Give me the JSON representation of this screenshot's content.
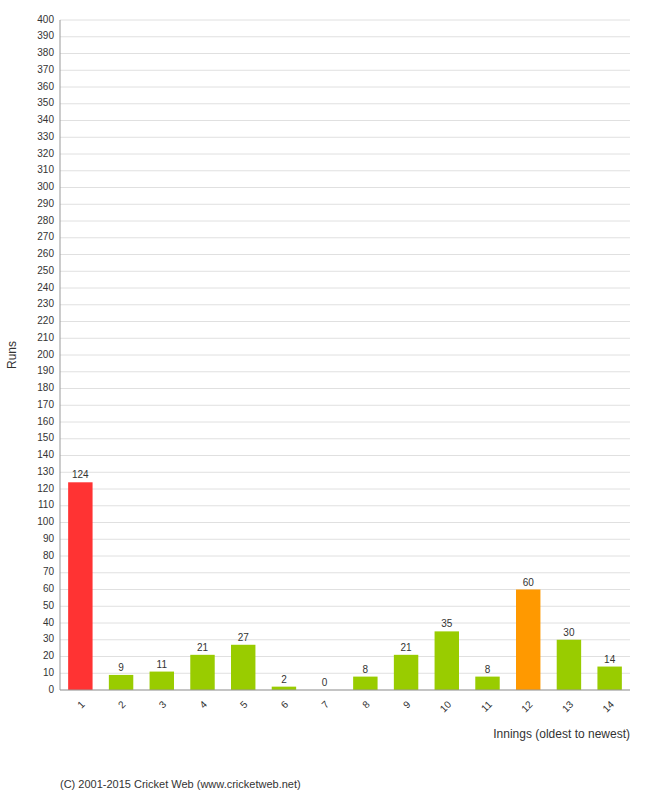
{
  "chart_data": {
    "type": "bar",
    "xlabel": "Innings (oldest to newest)",
    "ylabel": "Runs",
    "categories": [
      "1",
      "2",
      "3",
      "4",
      "5",
      "6",
      "7",
      "8",
      "9",
      "10",
      "11",
      "12",
      "13",
      "14"
    ],
    "values": [
      124,
      9,
      11,
      21,
      27,
      2,
      0,
      8,
      21,
      35,
      8,
      60,
      30,
      14
    ],
    "colors": [
      "#ff3333",
      "#99cc00",
      "#99cc00",
      "#99cc00",
      "#99cc00",
      "#99cc00",
      "#99cc00",
      "#99cc00",
      "#99cc00",
      "#99cc00",
      "#99cc00",
      "#ff9900",
      "#99cc00",
      "#99cc00"
    ],
    "ylim": [
      0,
      400
    ],
    "yticks": [
      0,
      10,
      20,
      30,
      40,
      50,
      60,
      70,
      80,
      90,
      100,
      110,
      120,
      130,
      140,
      150,
      160,
      170,
      180,
      190,
      200,
      210,
      220,
      230,
      240,
      250,
      260,
      270,
      280,
      290,
      300,
      310,
      320,
      330,
      340,
      350,
      360,
      370,
      380,
      390,
      400
    ],
    "grid": true,
    "data_labels": true,
    "annotations": [
      "(C) 2001-2015 Cricket Web (www.cricketweb.net)"
    ]
  }
}
